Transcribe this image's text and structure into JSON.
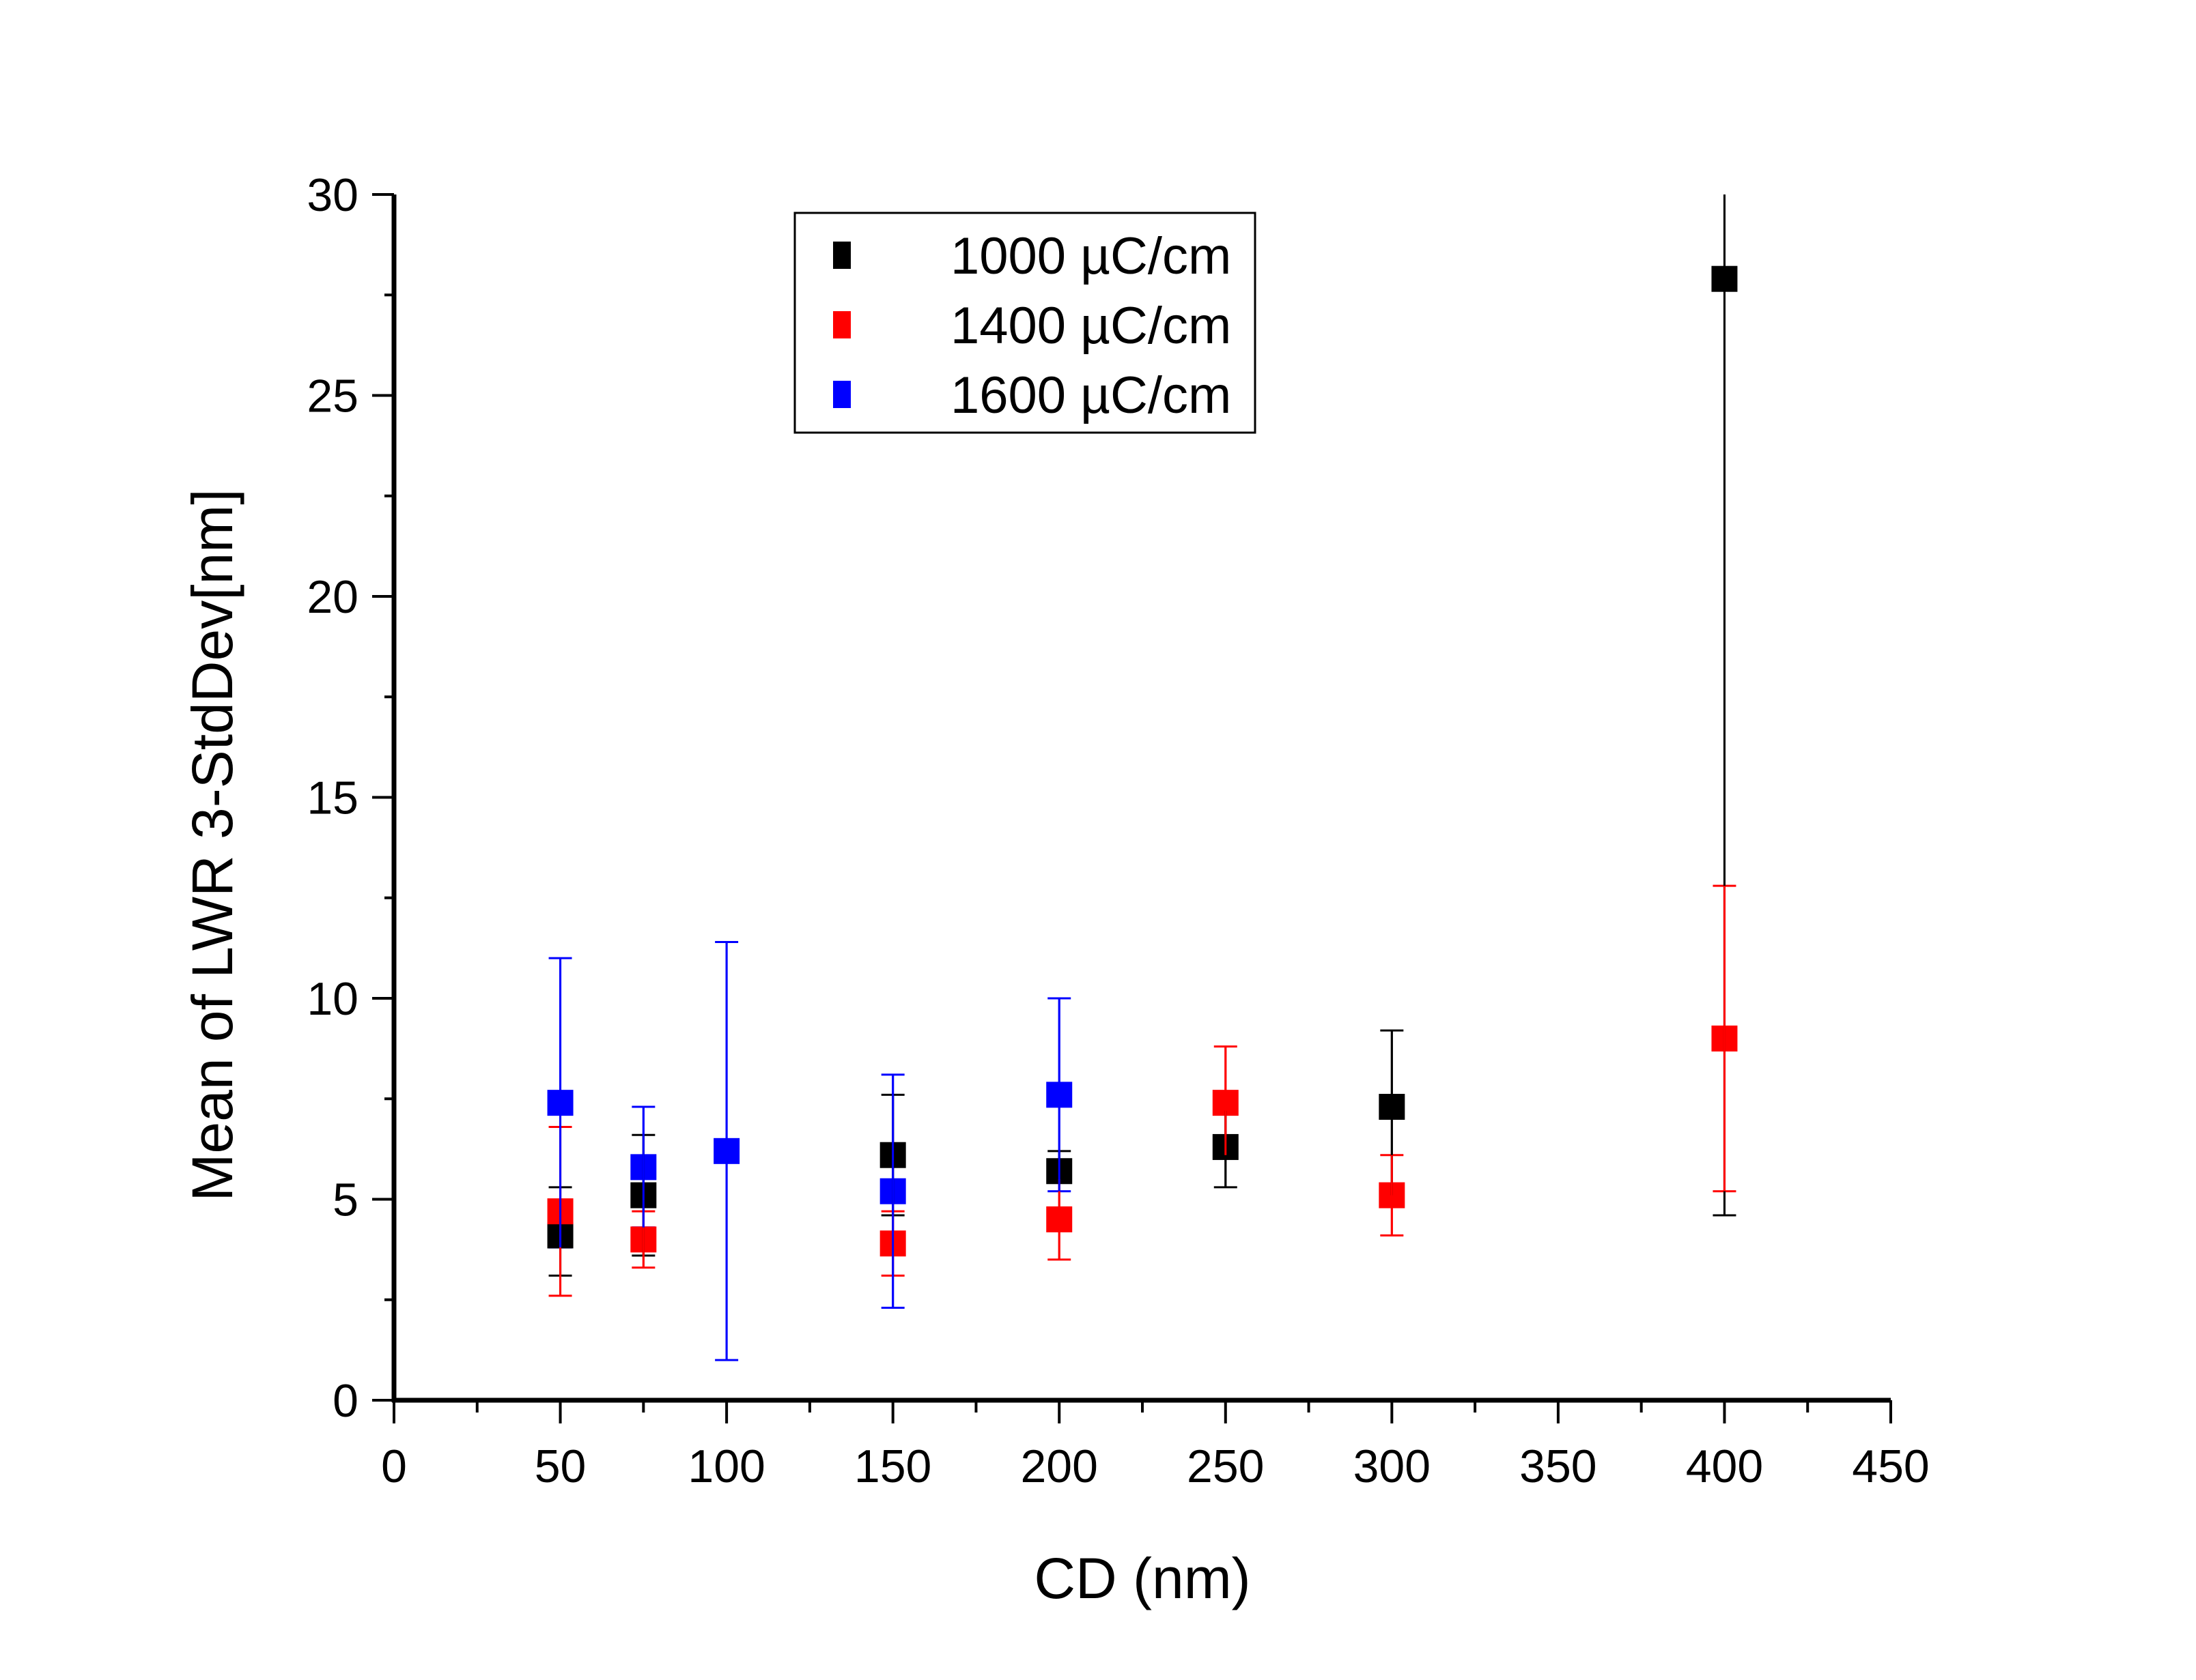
{
  "chart_data": {
    "type": "scatter",
    "title": "",
    "xlabel": "CD (nm)",
    "ylabel": "Mean of LWR 3-StdDev[nm]",
    "xlim": [
      0,
      450
    ],
    "ylim": [
      0,
      30
    ],
    "x_ticks": [
      0,
      50,
      100,
      150,
      200,
      250,
      300,
      350,
      400,
      450
    ],
    "x_tick_labels": [
      "0",
      "50",
      "100",
      "150",
      "200",
      "250",
      "300",
      "350",
      "400",
      "450"
    ],
    "y_ticks": [
      0,
      5,
      10,
      15,
      20,
      25,
      30
    ],
    "y_tick_labels": [
      "0",
      "5",
      "10",
      "15",
      "20",
      "25",
      "30"
    ],
    "grid": false,
    "legend_position": "top-left-center",
    "marker": "square",
    "error_bars": "asymmetric vertical (upper/lower bounds)",
    "series": [
      {
        "name": "1000 µC/cm",
        "color": "#000000",
        "points": [
          {
            "x": 50,
            "y": 4.1,
            "upper": 5.3,
            "lower": 3.1
          },
          {
            "x": 75,
            "y": 5.1,
            "upper": 6.6,
            "lower": 3.6
          },
          {
            "x": 150,
            "y": 6.1,
            "upper": 7.6,
            "lower": 4.6
          },
          {
            "x": 200,
            "y": 5.7,
            "upper": 6.2,
            "lower": 5.5
          },
          {
            "x": 250,
            "y": 6.3,
            "upper": 7.2,
            "lower": 5.3
          },
          {
            "x": 300,
            "y": 7.3,
            "upper": 9.2,
            "lower": 5.1
          },
          {
            "x": 400,
            "y": 27.9,
            "upper": 30.0,
            "lower": 4.6
          }
        ]
      },
      {
        "name": "1400 µC/cm",
        "color": "#ff0000",
        "points": [
          {
            "x": 50,
            "y": 4.7,
            "upper": 6.8,
            "lower": 2.6
          },
          {
            "x": 75,
            "y": 4.0,
            "upper": 4.7,
            "lower": 3.3
          },
          {
            "x": 150,
            "y": 3.9,
            "upper": 4.7,
            "lower": 3.1
          },
          {
            "x": 200,
            "y": 4.5,
            "upper": 5.5,
            "lower": 3.5
          },
          {
            "x": 250,
            "y": 7.4,
            "upper": 8.8,
            "lower": 6.1
          },
          {
            "x": 300,
            "y": 5.1,
            "upper": 6.1,
            "lower": 4.1
          },
          {
            "x": 400,
            "y": 9.0,
            "upper": 12.8,
            "lower": 5.2
          }
        ]
      },
      {
        "name": "1600 µC/cm",
        "color": "#0000ff",
        "points": [
          {
            "x": 50,
            "y": 7.4,
            "upper": 11.0,
            "lower": 3.8
          },
          {
            "x": 75,
            "y": 5.8,
            "upper": 7.3,
            "lower": 4.3
          },
          {
            "x": 100,
            "y": 6.2,
            "upper": 11.4,
            "lower": 1.0
          },
          {
            "x": 150,
            "y": 5.2,
            "upper": 8.1,
            "lower": 2.3
          },
          {
            "x": 200,
            "y": 7.6,
            "upper": 10.0,
            "lower": 5.2
          }
        ]
      }
    ]
  }
}
